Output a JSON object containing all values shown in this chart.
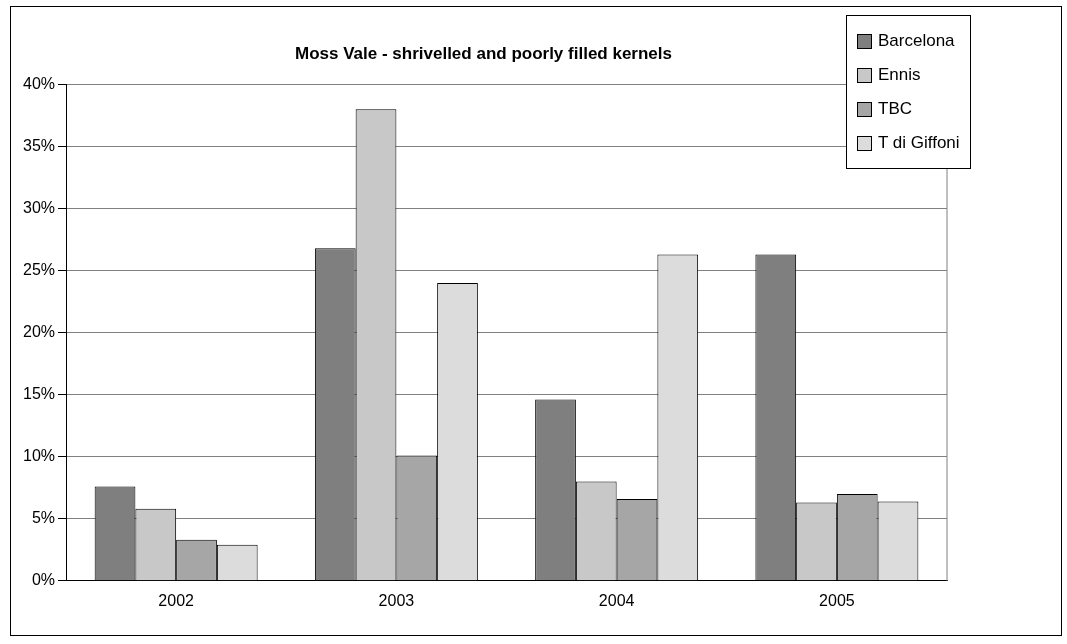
{
  "chart_data": {
    "type": "bar",
    "title": "Moss Vale - shrivelled and poorly filled kernels",
    "categories": [
      "2002",
      "2003",
      "2004",
      "2005"
    ],
    "series": [
      {
        "name": "Barcelona",
        "color": "#7f7f7f",
        "values": [
          7.6,
          26.8,
          14.6,
          26.3
        ]
      },
      {
        "name": "Ennis",
        "color": "#c8c8c8",
        "values": [
          5.8,
          38.0,
          8.0,
          6.3
        ]
      },
      {
        "name": "TBC",
        "color": "#a6a6a6",
        "values": [
          3.3,
          10.1,
          6.6,
          7.0
        ]
      },
      {
        "name": "T di Giffoni",
        "color": "#dcdcdc",
        "values": [
          2.9,
          24.0,
          26.3,
          6.4
        ]
      }
    ],
    "ylim": [
      0,
      40
    ],
    "yticks": [
      {
        "value": 0,
        "label": "0%"
      },
      {
        "value": 5,
        "label": "5%"
      },
      {
        "value": 10,
        "label": "10%"
      },
      {
        "value": 15,
        "label": "15%"
      },
      {
        "value": 20,
        "label": "20%"
      },
      {
        "value": 25,
        "label": "25%"
      },
      {
        "value": 30,
        "label": "30%"
      },
      {
        "value": 35,
        "label": "35%"
      },
      {
        "value": 40,
        "label": "40%"
      }
    ],
    "grid": "y",
    "legend": "top right"
  }
}
